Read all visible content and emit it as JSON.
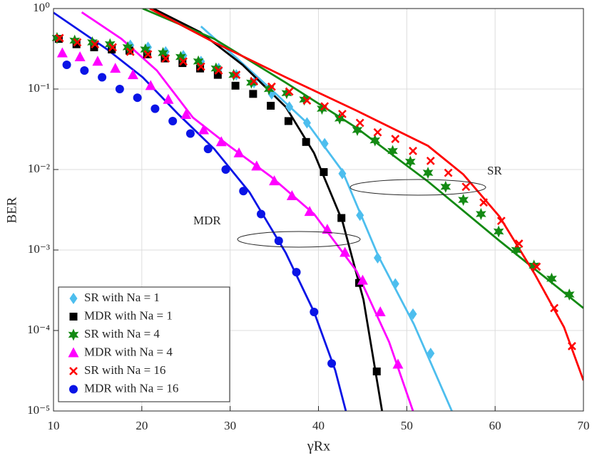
{
  "chart_data": {
    "type": "line",
    "log_y": true,
    "grid": true,
    "legend": "lower left",
    "xlabel": "γRx",
    "ylabel": "BER",
    "xlim": [
      10,
      70
    ],
    "xticks": [
      10,
      20,
      30,
      40,
      50,
      60,
      70
    ],
    "ylim": [
      1e-05,
      1
    ],
    "yticks": [
      {
        "value": 1,
        "label": "10⁰"
      },
      {
        "value": 0.1,
        "label": "10⁻¹"
      },
      {
        "value": 0.01,
        "label": "10⁻²"
      },
      {
        "value": 0.001,
        "label": "10⁻³"
      },
      {
        "value": 0.0001,
        "label": "10⁻⁴"
      },
      {
        "value": 1e-05,
        "label": "10⁻⁵"
      }
    ],
    "annotations": [
      "SR",
      "MDR"
    ],
    "series": [
      {
        "name": "SR with Na = 1",
        "color": "#4dbeee",
        "marker": "diamond",
        "x": [
          18.7,
          20.7,
          22.7,
          24.7,
          26.7,
          28.7,
          30.7,
          32.7,
          34.7,
          36.7,
          38.7,
          40.7,
          42.7,
          44.7,
          46.7,
          48.7,
          50.7,
          52.7
        ],
        "values": [
          0.35,
          0.33,
          0.29,
          0.26,
          0.22,
          0.18,
          0.15,
          0.12,
          0.087,
          0.06,
          0.038,
          0.021,
          0.0089,
          0.0027,
          0.0008,
          0.00038,
          0.00016,
          5.2e-05
        ],
        "fit_x": [
          26.7,
          30.6,
          34.6,
          38.7,
          42.7,
          46.8,
          50.8,
          55.1
        ],
        "fit_values": [
          0.6,
          0.25,
          0.1,
          0.038,
          0.0096,
          0.00083,
          0.00012,
          1e-05
        ]
      },
      {
        "name": "MDR with Na = 1",
        "color": "#000000",
        "marker": "square",
        "x": [
          10.6,
          12.6,
          14.6,
          16.6,
          18.6,
          20.6,
          22.6,
          24.6,
          26.6,
          28.6,
          30.6,
          32.6,
          34.6,
          36.6,
          38.6,
          40.6,
          42.6,
          44.6,
          46.6
        ],
        "values": [
          0.42,
          0.36,
          0.33,
          0.31,
          0.3,
          0.27,
          0.24,
          0.21,
          0.18,
          0.15,
          0.11,
          0.087,
          0.062,
          0.04,
          0.022,
          0.0093,
          0.0025,
          0.00039,
          3.1e-05
        ],
        "fit_x": [
          21.3,
          26.6,
          31.4,
          36.3,
          39.5,
          42.7,
          45.1,
          47.2
        ],
        "fit_values": [
          1,
          0.51,
          0.2,
          0.06,
          0.016,
          0.0023,
          0.00024,
          1e-05
        ]
      },
      {
        "name": "SR with Na = 4",
        "color": "#138a13",
        "marker": "star",
        "x": [
          10.4,
          12.4,
          14.4,
          16.4,
          18.4,
          20.4,
          22.4,
          24.4,
          26.4,
          28.4,
          30.4,
          32.4,
          34.4,
          36.4,
          38.4,
          40.4,
          42.4,
          44.4,
          46.4,
          48.4,
          50.4,
          52.4,
          54.4,
          56.4,
          58.4,
          60.4,
          62.4,
          64.4,
          66.4,
          68.4
        ],
        "values": [
          0.43,
          0.4,
          0.38,
          0.36,
          0.33,
          0.31,
          0.28,
          0.25,
          0.22,
          0.18,
          0.15,
          0.12,
          0.1,
          0.089,
          0.074,
          0.057,
          0.043,
          0.031,
          0.023,
          0.017,
          0.0125,
          0.0091,
          0.0061,
          0.0042,
          0.0028,
          0.0017,
          0.001,
          0.00064,
          0.00044,
          0.00028
        ],
        "fit_x": [
          20.1,
          28.2,
          36.3,
          44.3,
          52.4,
          60.5,
          70
        ],
        "fit_values": [
          1,
          0.42,
          0.12,
          0.033,
          0.0071,
          0.0013,
          0.00019
        ]
      },
      {
        "name": "MDR with Na = 4",
        "color": "#ff00ff",
        "marker": "triangle",
        "x": [
          11,
          13,
          15,
          17,
          19,
          21,
          23,
          25,
          27,
          29,
          31,
          33,
          35,
          37,
          39,
          41,
          43,
          45,
          47,
          49
        ],
        "values": [
          0.28,
          0.25,
          0.22,
          0.18,
          0.15,
          0.11,
          0.074,
          0.048,
          0.031,
          0.022,
          0.016,
          0.011,
          0.0072,
          0.0047,
          0.003,
          0.0018,
          0.00093,
          0.00042,
          0.00017,
          3.8e-05
        ],
        "fit_x": [
          13.2,
          17.7,
          21.7,
          25.8,
          29.8,
          34.6,
          39.5,
          44.3,
          48,
          50.7
        ],
        "fit_values": [
          0.9,
          0.42,
          0.17,
          0.044,
          0.02,
          0.0082,
          0.0028,
          0.00055,
          7.2e-05,
          1e-05
        ]
      },
      {
        "name": "SR with Na = 16",
        "color": "#ff0000",
        "marker": "x",
        "x": [
          10.7,
          12.7,
          14.7,
          16.7,
          18.7,
          20.7,
          22.7,
          24.7,
          26.7,
          28.7,
          30.7,
          32.7,
          34.7,
          36.7,
          38.7,
          40.7,
          42.7,
          44.7,
          46.7,
          48.7,
          50.7,
          52.7,
          54.7,
          56.7,
          58.7,
          60.7,
          62.7,
          64.7,
          66.7,
          68.7
        ],
        "values": [
          0.43,
          0.38,
          0.36,
          0.33,
          0.29,
          0.27,
          0.24,
          0.22,
          0.19,
          0.17,
          0.15,
          0.125,
          0.107,
          0.093,
          0.072,
          0.061,
          0.049,
          0.038,
          0.029,
          0.024,
          0.017,
          0.0128,
          0.0091,
          0.0061,
          0.0039,
          0.0023,
          0.0012,
          0.00062,
          0.00019,
          6.4e-05
        ],
        "fit_x": [
          20.9,
          28.2,
          36.3,
          44.3,
          52.4,
          56.4,
          60.5,
          64.5,
          67.8,
          70
        ],
        "fit_values": [
          1,
          0.38,
          0.14,
          0.054,
          0.0197,
          0.0087,
          0.0026,
          0.0005,
          0.00011,
          2.4e-05
        ]
      },
      {
        "name": "MDR with Na = 16",
        "color": "#0a14e6",
        "marker": "circle",
        "x": [
          11.5,
          13.5,
          15.5,
          17.5,
          19.5,
          21.5,
          23.5,
          25.5,
          27.5,
          29.5,
          31.5,
          33.5,
          35.5,
          37.5,
          39.5,
          41.5
        ],
        "values": [
          0.2,
          0.17,
          0.14,
          0.1,
          0.078,
          0.057,
          0.04,
          0.028,
          0.018,
          0.01,
          0.0054,
          0.0028,
          0.0013,
          0.00053,
          0.00017,
          3.9e-05
        ],
        "fit_x": [
          10,
          16.1,
          20.1,
          24.1,
          28.2,
          32.2,
          36.3,
          39.5,
          41.9,
          43.1
        ],
        "fit_values": [
          0.89,
          0.31,
          0.14,
          0.049,
          0.018,
          0.0052,
          0.00092,
          0.00017,
          3.2e-05,
          1e-05
        ]
      }
    ]
  }
}
